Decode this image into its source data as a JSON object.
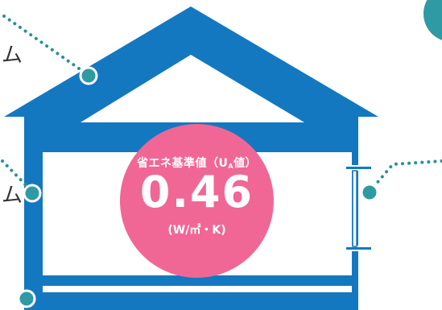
{
  "badge": {
    "title": "省エネ基準値",
    "title_paren_open": "（U",
    "title_sub": "A",
    "title_paren_close": "値）",
    "value": "0.46",
    "unit": "(W/㎡・K)"
  },
  "side_labels": {
    "roof": "ム",
    "wall": "ム"
  },
  "colors": {
    "house_blue": "#1478C0",
    "badge_pink": "#F06796",
    "connector_teal": "#2D8F9A",
    "marker_fill": "#2F9AA4"
  }
}
